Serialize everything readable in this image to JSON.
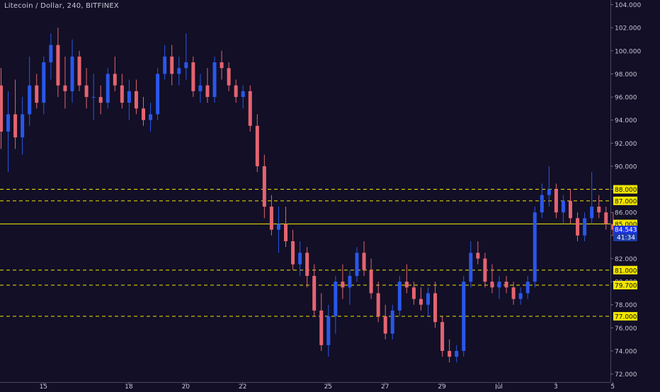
{
  "header": {
    "title": "Litecoin / Dollar, 240, BITFINEX"
  },
  "colors": {
    "background": "#120f26",
    "up": "#2a57ea",
    "down": "#e46470",
    "level": "#f2e600",
    "axis_text": "#c7c7d3",
    "badge_text": "#101010",
    "price_badge": "#1c32e6",
    "countdown_badge": "#1c3aa8"
  },
  "chart_data": {
    "type": "candlestick",
    "title": "Litecoin / Dollar, 240, BITFINEX",
    "ylim": [
      71.3,
      104.4
    ],
    "y_ticks": [
      "72.000",
      "74.000",
      "76.000",
      "78.000",
      "80.000",
      "82.000",
      "84.000",
      "86.000",
      "88.000",
      "90.000",
      "92.000",
      "94.000",
      "96.000",
      "98.000",
      "100.000",
      "102.000",
      "104.000"
    ],
    "x_ticks": [
      {
        "label": "15",
        "i": 6
      },
      {
        "label": "18",
        "i": 18
      },
      {
        "label": "20",
        "i": 26
      },
      {
        "label": "22",
        "i": 34
      },
      {
        "label": "25",
        "i": 46
      },
      {
        "label": "27",
        "i": 54
      },
      {
        "label": "29",
        "i": 62
      },
      {
        "label": "Jul",
        "i": 70
      },
      {
        "label": "3",
        "i": 78
      },
      {
        "label": "5",
        "i": 86
      }
    ],
    "levels": [
      {
        "value": 88.0,
        "label": "88.000",
        "style": "dashed"
      },
      {
        "value": 87.0,
        "label": "87.000",
        "style": "dashed"
      },
      {
        "value": 85.0,
        "label": "85.000",
        "style": "solid"
      },
      {
        "value": 81.0,
        "label": "81.000",
        "style": "dashed"
      },
      {
        "value": 79.7,
        "label": "79.700",
        "style": "dashed"
      },
      {
        "value": 77.0,
        "label": "77.000",
        "style": "dashed"
      }
    ],
    "current_price": {
      "value": 84.543,
      "label": "84.543",
      "countdown": "41:34"
    },
    "candles": [
      [
        97.0,
        98.5,
        91.5,
        93.0
      ],
      [
        93.0,
        96.5,
        89.5,
        94.5
      ],
      [
        94.5,
        97.5,
        91.5,
        92.5
      ],
      [
        92.5,
        96.0,
        91.0,
        94.5
      ],
      [
        94.5,
        99.5,
        93.5,
        97.0
      ],
      [
        97.0,
        98.0,
        95.0,
        95.5
      ],
      [
        95.5,
        99.5,
        94.5,
        99.0
      ],
      [
        99.0,
        101.5,
        97.5,
        100.5
      ],
      [
        100.5,
        102.0,
        96.0,
        97.0
      ],
      [
        97.0,
        99.5,
        95.0,
        96.5
      ],
      [
        96.5,
        101.0,
        95.5,
        99.5
      ],
      [
        99.5,
        100.0,
        96.5,
        97.0
      ],
      [
        97.0,
        98.5,
        95.0,
        96.0
      ],
      [
        96.0,
        98.0,
        94.0,
        96.0
      ],
      [
        96.0,
        97.0,
        94.5,
        95.5
      ],
      [
        95.5,
        98.5,
        95.0,
        98.0
      ],
      [
        98.0,
        99.5,
        96.5,
        97.0
      ],
      [
        97.0,
        98.0,
        95.0,
        95.5
      ],
      [
        95.5,
        97.5,
        94.0,
        96.5
      ],
      [
        96.5,
        97.5,
        94.5,
        95.0
      ],
      [
        95.0,
        96.0,
        93.5,
        94.0
      ],
      [
        94.0,
        95.5,
        93.0,
        94.5
      ],
      [
        94.5,
        98.5,
        94.0,
        98.0
      ],
      [
        98.0,
        100.5,
        97.5,
        99.5
      ],
      [
        99.5,
        100.5,
        97.0,
        98.0
      ],
      [
        98.0,
        99.5,
        97.0,
        98.5
      ],
      [
        98.5,
        101.5,
        97.5,
        99.0
      ],
      [
        99.0,
        99.5,
        96.0,
        96.5
      ],
      [
        96.5,
        98.0,
        95.5,
        97.0
      ],
      [
        97.0,
        98.5,
        95.5,
        96.0
      ],
      [
        96.0,
        99.5,
        95.5,
        99.0
      ],
      [
        99.0,
        100.0,
        97.5,
        98.5
      ],
      [
        98.5,
        99.0,
        96.5,
        97.0
      ],
      [
        97.0,
        97.5,
        95.5,
        96.0
      ],
      [
        96.0,
        97.0,
        95.0,
        96.5
      ],
      [
        96.5,
        97.0,
        93.0,
        93.5
      ],
      [
        93.5,
        94.5,
        89.5,
        90.0
      ],
      [
        90.0,
        91.0,
        85.5,
        86.5
      ],
      [
        86.5,
        87.5,
        84.0,
        84.5
      ],
      [
        84.5,
        86.5,
        82.5,
        85.0
      ],
      [
        85.0,
        86.5,
        83.0,
        83.5
      ],
      [
        83.5,
        84.5,
        81.0,
        81.5
      ],
      [
        81.5,
        83.5,
        80.5,
        82.5
      ],
      [
        82.5,
        83.0,
        79.5,
        80.5
      ],
      [
        80.5,
        81.5,
        77.0,
        77.5
      ],
      [
        77.5,
        79.0,
        74.0,
        74.5
      ],
      [
        74.5,
        78.0,
        73.5,
        77.0
      ],
      [
        77.0,
        80.5,
        75.5,
        80.0
      ],
      [
        80.0,
        81.5,
        78.5,
        79.5
      ],
      [
        79.5,
        81.0,
        78.0,
        80.5
      ],
      [
        80.5,
        83.0,
        80.0,
        82.5
      ],
      [
        82.5,
        83.5,
        80.5,
        81.0
      ],
      [
        81.0,
        82.0,
        78.5,
        79.0
      ],
      [
        79.0,
        80.0,
        76.5,
        77.0
      ],
      [
        77.0,
        78.0,
        75.0,
        75.5
      ],
      [
        75.5,
        78.0,
        75.0,
        77.5
      ],
      [
        77.5,
        80.5,
        77.0,
        80.0
      ],
      [
        80.0,
        81.5,
        79.0,
        79.5
      ],
      [
        79.5,
        80.0,
        78.0,
        78.5
      ],
      [
        78.5,
        79.5,
        77.5,
        78.0
      ],
      [
        78.0,
        79.5,
        77.0,
        79.0
      ],
      [
        79.0,
        80.0,
        76.0,
        76.5
      ],
      [
        76.5,
        77.0,
        73.5,
        74.0
      ],
      [
        74.0,
        75.0,
        73.0,
        73.5
      ],
      [
        73.5,
        74.5,
        73.0,
        74.0
      ],
      [
        74.0,
        80.5,
        73.5,
        80.0
      ],
      [
        80.0,
        83.5,
        79.5,
        82.5
      ],
      [
        82.5,
        83.5,
        81.5,
        82.0
      ],
      [
        82.0,
        82.5,
        79.5,
        80.0
      ],
      [
        80.0,
        81.5,
        79.0,
        79.5
      ],
      [
        79.5,
        80.5,
        78.5,
        80.0
      ],
      [
        80.0,
        80.5,
        79.0,
        79.5
      ],
      [
        79.5,
        80.0,
        78.0,
        78.5
      ],
      [
        78.5,
        79.5,
        78.0,
        79.0
      ],
      [
        79.0,
        80.5,
        78.5,
        80.0
      ],
      [
        80.0,
        86.5,
        79.5,
        86.0
      ],
      [
        86.0,
        88.5,
        85.5,
        87.5
      ],
      [
        87.5,
        90.0,
        86.5,
        88.0
      ],
      [
        88.0,
        88.5,
        85.5,
        86.0
      ],
      [
        86.0,
        87.5,
        85.0,
        87.0
      ],
      [
        87.0,
        88.0,
        85.0,
        85.5
      ],
      [
        85.5,
        86.0,
        83.5,
        84.0
      ],
      [
        84.0,
        86.0,
        83.5,
        85.5
      ],
      [
        85.5,
        89.5,
        85.0,
        86.5
      ],
      [
        86.5,
        87.5,
        85.5,
        86.0
      ],
      [
        86.0,
        86.5,
        84.5,
        85.0
      ],
      [
        85.0,
        86.0,
        84.0,
        84.5
      ]
    ]
  }
}
